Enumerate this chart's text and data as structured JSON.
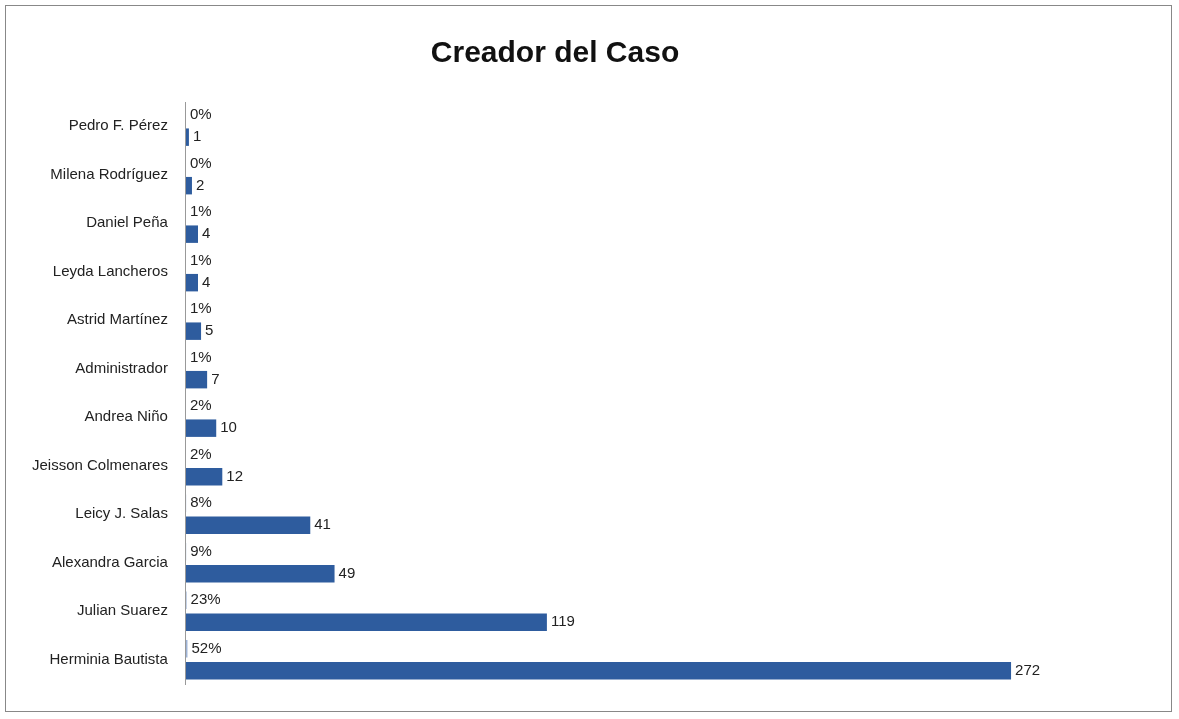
{
  "chart_data": {
    "type": "bar",
    "title": "Creador del Caso",
    "orientation": "horizontal",
    "tick_labels": "y",
    "categories": [
      "Pedro F. Pérez",
      "Milena Rodríguez",
      "Daniel Peña",
      "Leyda Lancheros",
      "Astrid Martínez",
      "Administrador",
      "Andrea Niño",
      "Jeisson Colmenares",
      "Leicy J. Salas",
      "Alexandra Garcia",
      "Julian Suarez",
      "Herminia Bautista"
    ],
    "series": [
      {
        "color": "#9db3d6",
        "values": [
          0.002,
          0.004,
          0.01,
          0.01,
          0.01,
          0.01,
          0.02,
          0.02,
          0.08,
          0.09,
          0.23,
          0.52
        ],
        "value_labels": [
          "0%",
          "0%",
          "1%",
          "1%",
          "1%",
          "1%",
          "2%",
          "2%",
          "8%",
          "9%",
          "23%",
          "52%"
        ]
      },
      {
        "color": "#2e5c9e",
        "values": [
          1,
          2,
          4,
          4,
          5,
          7,
          10,
          12,
          41,
          49,
          119,
          272
        ],
        "value_labels": [
          "1",
          "2",
          "4",
          "4",
          "5",
          "7",
          "10",
          "12",
          "41",
          "49",
          "119",
          "272"
        ]
      }
    ]
  }
}
